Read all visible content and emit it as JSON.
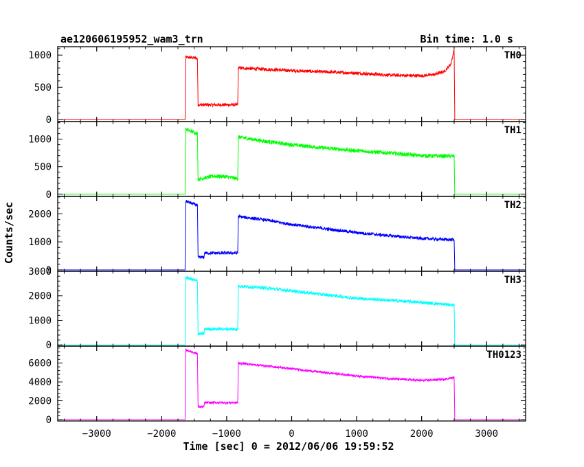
{
  "chart_data": {
    "type": "line",
    "title": "ae120606195952_wam3_trn",
    "bin_time_label": "Bin time: 1.0 s",
    "xlabel": "Time [sec] 0 = 2012/06/06 19:59:52",
    "ylabel": "Counts/sec",
    "xlim": [
      -3600,
      3600
    ],
    "x_ticks": [
      -3000,
      -2000,
      -1000,
      0,
      1000,
      2000,
      3000
    ],
    "x_tick_labels": [
      "−3000",
      "−2000",
      "−1000",
      "0",
      "1000",
      "2000",
      "3000"
    ],
    "grid": false,
    "panels": [
      {
        "name": "TH0",
        "color": "#ff0000",
        "ylim": [
          -30,
          1130
        ],
        "y_ticks": [
          0,
          500,
          1000
        ],
        "y_tick_labels": [
          "0",
          "500",
          "1000"
        ],
        "x": [
          -3550,
          -1640,
          -1630,
          -1450,
          -1440,
          -830,
          -820,
          -400,
          0,
          500,
          1000,
          1500,
          2000,
          2200,
          2350,
          2450,
          2500,
          2510,
          3550
        ],
        "y": [
          0,
          0,
          970,
          950,
          230,
          230,
          800,
          780,
          760,
          740,
          720,
          690,
          680,
          700,
          750,
          860,
          1080,
          0,
          0
        ],
        "noise": 25
      },
      {
        "name": "TH1",
        "color": "#00ff00",
        "ylim": [
          -40,
          1320
        ],
        "y_ticks": [
          0,
          500,
          1000
        ],
        "y_tick_labels": [
          "0",
          "500",
          "1000"
        ],
        "x": [
          -3550,
          -1640,
          -1630,
          -1450,
          -1440,
          -1200,
          -1000,
          -830,
          -820,
          -400,
          0,
          500,
          1000,
          1500,
          2000,
          2500,
          2510,
          3550
        ],
        "y": [
          0,
          0,
          1180,
          1100,
          270,
          330,
          320,
          280,
          1040,
          960,
          900,
          840,
          790,
          750,
          700,
          690,
          0,
          0
        ],
        "noise": 35
      },
      {
        "name": "TH2",
        "color": "#0000ff",
        "ylim": [
          -50,
          2620
        ],
        "y_ticks": [
          0,
          1000,
          2000
        ],
        "y_tick_labels": [
          "0",
          "1000",
          "2000"
        ],
        "x": [
          -3550,
          -1640,
          -1630,
          -1450,
          -1440,
          -1350,
          -1340,
          -830,
          -820,
          -400,
          0,
          500,
          1000,
          1500,
          2000,
          2500,
          2510,
          3550
        ],
        "y": [
          0,
          0,
          2450,
          2300,
          450,
          450,
          600,
          600,
          1900,
          1780,
          1620,
          1470,
          1330,
          1220,
          1120,
          1070,
          0,
          0
        ],
        "noise": 55
      },
      {
        "name": "TH3",
        "color": "#00ffff",
        "ylim": [
          -50,
          3000
        ],
        "y_ticks": [
          0,
          1000,
          2000,
          3000
        ],
        "y_tick_labels": [
          "0",
          "1000",
          "2000",
          "3000"
        ],
        "x": [
          -3550,
          -1640,
          -1630,
          -1450,
          -1440,
          -1350,
          -1340,
          -830,
          -820,
          -400,
          0,
          500,
          1000,
          1500,
          2000,
          2500,
          2510,
          3550
        ],
        "y": [
          0,
          0,
          2750,
          2600,
          450,
          450,
          650,
          640,
          2400,
          2320,
          2200,
          2050,
          1900,
          1820,
          1730,
          1620,
          0,
          0
        ],
        "noise": 65
      },
      {
        "name": "TH0123",
        "color": "#ff00ff",
        "ylim": [
          -150,
          7800
        ],
        "y_ticks": [
          0,
          2000,
          4000,
          6000
        ],
        "y_tick_labels": [
          "0",
          "2000",
          "4000",
          "6000"
        ],
        "x": [
          -3550,
          -1640,
          -1630,
          -1450,
          -1440,
          -1350,
          -1340,
          -830,
          -820,
          -400,
          0,
          500,
          1000,
          1500,
          2000,
          2300,
          2500,
          2510,
          3550
        ],
        "y": [
          0,
          0,
          7400,
          7000,
          1350,
          1350,
          1800,
          1800,
          6000,
          5700,
          5400,
          5000,
          4650,
          4350,
          4150,
          4250,
          4450,
          0,
          0
        ],
        "noise": 120
      }
    ]
  }
}
